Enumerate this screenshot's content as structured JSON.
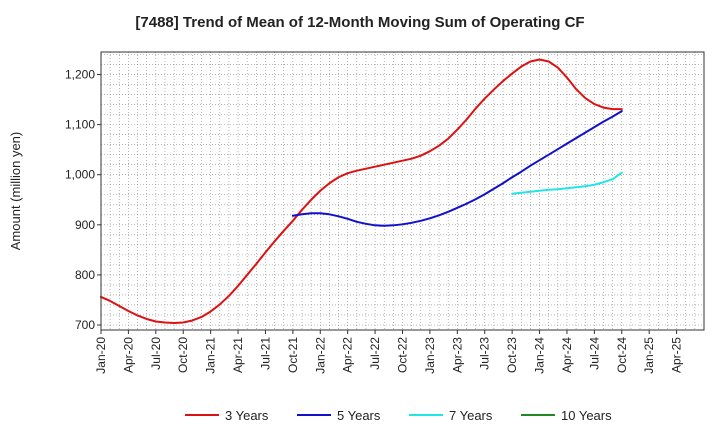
{
  "chart_data": {
    "type": "line",
    "title": "[7488]  Trend of Mean of 12-Month Moving Sum of Operating CF",
    "ylabel": "Amount (million yen)",
    "xlabel": "",
    "ylim": [
      690,
      1245
    ],
    "yticks": [
      700,
      800,
      900,
      1000,
      1100,
      1200
    ],
    "ytick_labels": [
      "700",
      "800",
      "900",
      "1,000",
      "1,100",
      "1,200"
    ],
    "x_start": "Jan-20",
    "x_month_count": 66,
    "xtick_labels": [
      "Jan-20",
      "Apr-20",
      "Jul-20",
      "Oct-20",
      "Jan-21",
      "Apr-21",
      "Jul-21",
      "Oct-21",
      "Jan-22",
      "Apr-22",
      "Jul-22",
      "Oct-22",
      "Jan-23",
      "Apr-23",
      "Jul-23",
      "Oct-23",
      "Jan-24",
      "Apr-24",
      "Jul-24",
      "Oct-24",
      "Jan-25",
      "Apr-25"
    ],
    "grid": true,
    "legend_position": "bottom",
    "series": [
      {
        "name": "3 Years",
        "color": "#dd1111",
        "x_month_index": [
          0,
          1,
          2,
          3,
          4,
          5,
          6,
          7,
          8,
          9,
          10,
          11,
          12,
          13,
          14,
          15,
          16,
          17,
          18,
          19,
          20,
          21,
          22,
          23,
          24,
          25,
          26,
          27,
          28,
          29,
          30,
          31,
          32,
          33,
          34,
          35,
          36,
          37,
          38,
          39,
          40,
          41,
          42,
          43,
          44,
          45,
          46,
          47,
          48,
          49,
          50,
          51,
          52,
          53,
          54,
          55,
          56,
          57
        ],
        "values": [
          756,
          748,
          738,
          728,
          719,
          712,
          707,
          705,
          704,
          705,
          709,
          716,
          727,
          741,
          758,
          778,
          800,
          822,
          845,
          867,
          888,
          908,
          930,
          950,
          968,
          983,
          995,
          1003,
          1008,
          1012,
          1016,
          1020,
          1024,
          1028,
          1032,
          1038,
          1047,
          1058,
          1072,
          1090,
          1110,
          1132,
          1152,
          1170,
          1187,
          1202,
          1216,
          1226,
          1230,
          1226,
          1214,
          1194,
          1171,
          1153,
          1141,
          1134,
          1131,
          1131
        ]
      },
      {
        "name": "5 Years",
        "color": "#1111cc",
        "x_month_index": [
          21,
          22,
          23,
          24,
          25,
          26,
          27,
          28,
          29,
          30,
          31,
          32,
          33,
          34,
          35,
          36,
          37,
          38,
          39,
          40,
          41,
          42,
          43,
          44,
          45,
          46,
          47,
          48,
          49,
          50,
          51,
          52,
          53,
          54,
          55,
          56,
          57
        ],
        "values": [
          918,
          921,
          923,
          923,
          921,
          917,
          912,
          906,
          902,
          899,
          898,
          899,
          901,
          904,
          908,
          913,
          919,
          926,
          934,
          942,
          951,
          961,
          972,
          983,
          995,
          1006,
          1018,
          1029,
          1040,
          1051,
          1062,
          1073,
          1084,
          1095,
          1106,
          1116,
          1127
        ]
      },
      {
        "name": "7 Years",
        "color": "#22e6e6",
        "x_month_index": [
          45,
          46,
          47,
          48,
          49,
          50,
          51,
          52,
          53,
          54,
          55,
          56,
          57
        ],
        "values": [
          962,
          964,
          966,
          968,
          970,
          971,
          973,
          975,
          977,
          980,
          985,
          991,
          1004
        ]
      },
      {
        "name": "10 Years",
        "color": "#228822",
        "x_month_index": [],
        "values": []
      }
    ]
  }
}
